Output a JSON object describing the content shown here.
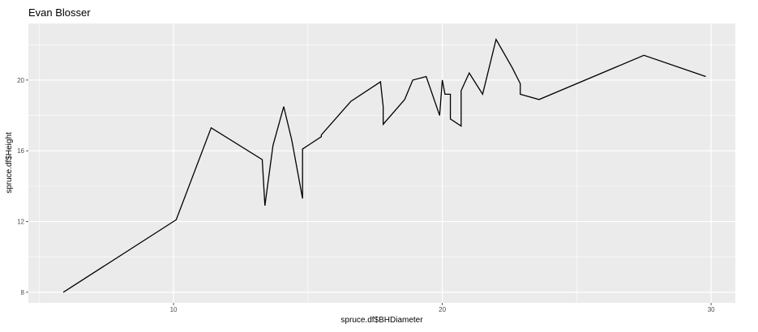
{
  "chart_data": {
    "type": "line",
    "title": "Evan Blosser",
    "xlabel": "spruce.df$BHDiameter",
    "ylabel": "spruce.df$Height",
    "xlim": [
      4.6,
      30.9
    ],
    "ylim": [
      7.4,
      23.2
    ],
    "x_ticks": [
      10,
      20,
      30
    ],
    "y_ticks": [
      8,
      12,
      16,
      20
    ],
    "grid": true,
    "x": [
      5.9,
      10.1,
      11.4,
      13.3,
      13.4,
      13.7,
      14.1,
      14.4,
      14.8,
      14.8,
      15.5,
      15.5,
      16.6,
      17.7,
      17.8,
      17.8,
      18.6,
      18.9,
      19.4,
      19.9,
      20.0,
      20.1,
      20.3,
      20.3,
      20.7,
      20.7,
      21.0,
      21.5,
      22.0,
      22.6,
      22.9,
      22.9,
      23.6,
      27.5,
      29.8
    ],
    "y": [
      8.0,
      12.1,
      17.3,
      15.5,
      12.9,
      16.3,
      18.5,
      16.6,
      13.3,
      16.1,
      16.8,
      16.9,
      18.8,
      19.9,
      18.5,
      17.5,
      18.9,
      20.0,
      20.2,
      18.0,
      20.0,
      19.2,
      19.2,
      17.8,
      17.4,
      19.4,
      20.4,
      19.2,
      22.3,
      20.7,
      19.8,
      19.2,
      18.9,
      21.4,
      20.2
    ],
    "series_color": "#000000",
    "panel_color": "#ebebeb",
    "grid_color": "#ffffff"
  }
}
